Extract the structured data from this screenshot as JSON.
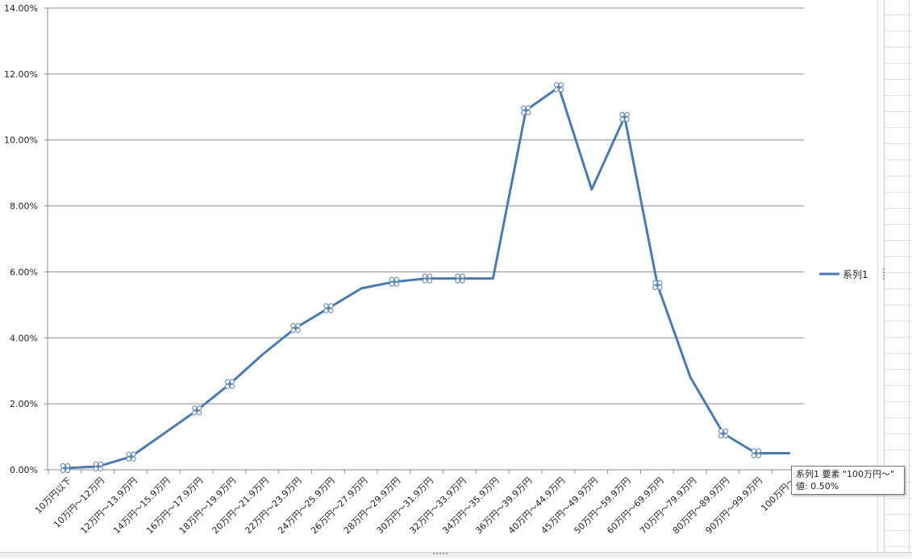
{
  "chart_data": {
    "type": "line",
    "categories": [
      "10万円以下",
      "10万円～12万円",
      "12万円～13.9万円",
      "14万円～15.9万円",
      "16万円～17.9万円",
      "18万円～19.9万円",
      "20万円～21.9万円",
      "22万円～23.9万円",
      "24万円～25.9万円",
      "26万円～27.9万円",
      "28万円～29.9万円",
      "30万円～31.9万円",
      "32万円～33.9万円",
      "34万円～35.9万円",
      "36万円～39.9万円",
      "40万円～44.9万円",
      "45万円～49.9万円",
      "50万円～59.9万円",
      "60万円～69.9万円",
      "70万円～79.9万円",
      "80万円～89.9万円",
      "90万円～99.9万円",
      "100万円～"
    ],
    "series": [
      {
        "name": "系列1",
        "values": [
          0.05,
          0.1,
          0.4,
          1.1,
          1.8,
          2.6,
          3.5,
          4.3,
          4.9,
          5.5,
          5.7,
          5.8,
          5.8,
          5.8,
          10.9,
          11.6,
          8.5,
          10.7,
          5.6,
          2.8,
          1.1,
          0.5,
          0.5
        ],
        "color": "#4a7ab0"
      }
    ],
    "marked_points": [
      0,
      1,
      2,
      4,
      5,
      7,
      8,
      10,
      11,
      12,
      14,
      15,
      17,
      18,
      20,
      21
    ],
    "yticks": [
      "0.00%",
      "2.00%",
      "4.00%",
      "6.00%",
      "8.00%",
      "10.00%",
      "12.00%",
      "14.00%"
    ],
    "ylim": [
      0,
      14
    ],
    "grid": true,
    "legend": "right",
    "title": "",
    "xlabel": "",
    "ylabel": ""
  },
  "tooltip": {
    "line1": "系列1 要素 \"100万円～\"",
    "line2": "値: 0.50%"
  },
  "colors": {
    "line": "#4a7ab0",
    "grid": "#8c8c8c",
    "axis": "#8c8c8c"
  }
}
